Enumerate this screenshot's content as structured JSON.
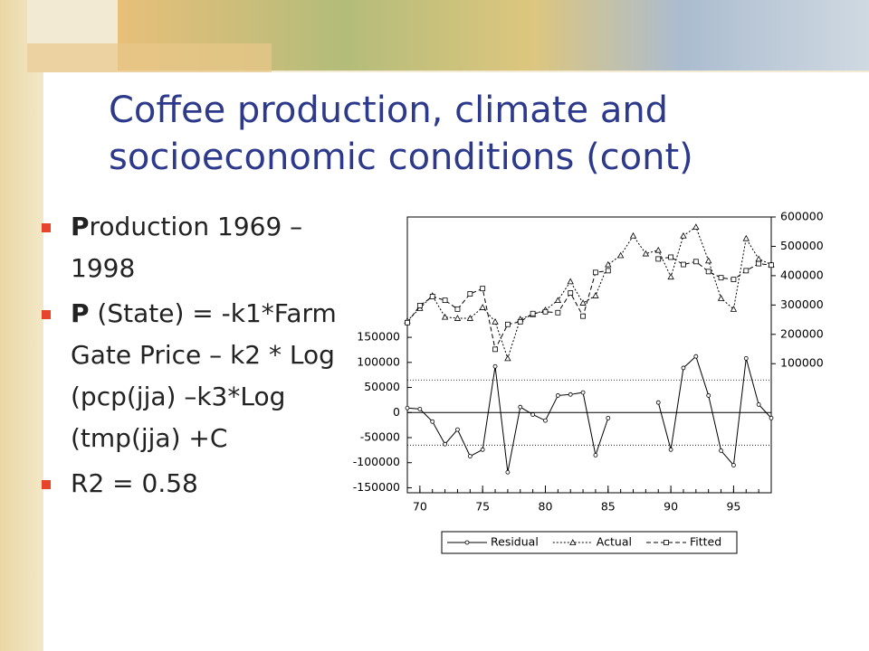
{
  "slide": {
    "title": "Coffee production, climate and socioeconomic conditions (cont)",
    "bullets": [
      {
        "bold": "P",
        "text": "roduction 1969 – 1998"
      },
      {
        "bold": "P",
        "text": " (State) = -k1*Farm Gate Price – k2 * Log (pcp(jja) –k3*Log (tmp(jja) +C"
      },
      {
        "text": "R2 = 0.58"
      }
    ]
  },
  "chart_data": {
    "type": "line",
    "x": [
      1969,
      1970,
      1971,
      1972,
      1973,
      1974,
      1975,
      1976,
      1977,
      1978,
      1979,
      1980,
      1981,
      1982,
      1983,
      1984,
      1985,
      1986,
      1987,
      1988,
      1989,
      1990,
      1991,
      1992,
      1993,
      1994,
      1995,
      1996,
      1997,
      1998
    ],
    "xlim": [
      1969,
      1998
    ],
    "xticks": [
      {
        "value": 1970,
        "label": "70"
      },
      {
        "value": 1975,
        "label": "75"
      },
      {
        "value": 1980,
        "label": "80"
      },
      {
        "value": 1985,
        "label": "85"
      },
      {
        "value": 1990,
        "label": "90"
      },
      {
        "value": 1995,
        "label": "95"
      }
    ],
    "ylim": [
      -160000,
      390000
    ],
    "yticks": [
      -150000,
      -100000,
      -50000,
      0,
      50000,
      100000,
      150000
    ],
    "y2lim": [
      -340000,
      600000
    ],
    "y2ticks": [
      100000,
      200000,
      300000,
      400000,
      500000,
      600000
    ],
    "reference_lines": [
      65000,
      -65000
    ],
    "series": [
      {
        "name": "Residual",
        "color": "#000000",
        "marker": "circle",
        "dash": "solid",
        "values": [
          9000,
          7000,
          -18000,
          -63000,
          -34000,
          -87000,
          -74000,
          92000,
          -119000,
          11000,
          -4000,
          -16000,
          34000,
          36000,
          40000,
          -85000,
          -11000,
          null,
          null,
          null,
          20000,
          -74000,
          89000,
          112000,
          34000,
          -76000,
          -105000,
          108000,
          16000,
          -11000
        ]
      },
      {
        "name": "Actual",
        "color": "#000000",
        "marker": "triangle",
        "dash": "dotted",
        "axis": "y2",
        "values": [
          246000,
          289000,
          332000,
          259000,
          255000,
          255000,
          292000,
          243000,
          118000,
          252000,
          268000,
          283000,
          316000,
          380000,
          307000,
          332000,
          438000,
          469000,
          536000,
          475000,
          487000,
          396000,
          536000,
          566000,
          451000,
          323000,
          286000,
          527000,
          457000,
          438000
        ]
      },
      {
        "name": "Fitted",
        "color": "#000000",
        "marker": "square",
        "dash": "dashed",
        "axis": "y2",
        "values": [
          240000,
          298000,
          329000,
          316000,
          286000,
          338000,
          356000,
          149000,
          234000,
          243000,
          271000,
          277000,
          274000,
          341000,
          262000,
          411000,
          417000,
          null,
          null,
          null,
          457000,
          463000,
          438000,
          448000,
          414000,
          393000,
          387000,
          417000,
          441000,
          436000
        ]
      }
    ]
  }
}
